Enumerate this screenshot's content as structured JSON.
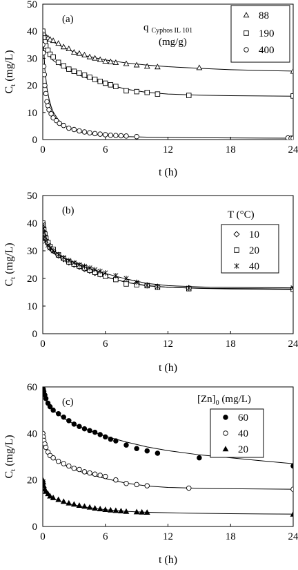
{
  "figure": {
    "panels_count": 3
  },
  "chart_data": [
    {
      "type": "scatter",
      "panel_label": "(a)",
      "xlabel": "t (h)",
      "ylabel": "C_t (mg/L)",
      "ylabel_main": "C",
      "ylabel_sub": "t",
      "ylabel_rest": " (mg/L)",
      "xlim": [
        0,
        24
      ],
      "ylim": [
        0,
        50
      ],
      "xticks": [
        0,
        6,
        12,
        18,
        24
      ],
      "yticks": [
        0,
        10,
        20,
        30,
        40,
        50
      ],
      "grid": false,
      "legend_title_lines": [
        "q",
        "Cyphos IL 101",
        "(mg/g)"
      ],
      "legend_placement": "top-right",
      "series": [
        {
          "name": "88",
          "marker": "triangle-open",
          "x": [
            0,
            0.05,
            0.1,
            0.2,
            0.3,
            0.5,
            0.7,
            1.0,
            1.5,
            2.0,
            2.5,
            3.0,
            3.5,
            4.0,
            4.5,
            5.0,
            5.5,
            6.0,
            6.5,
            7.0,
            8.0,
            9.0,
            10.0,
            11.0,
            15.0,
            24.0
          ],
          "y": [
            40,
            39.5,
            39,
            38.5,
            38,
            37.5,
            37,
            36.5,
            35.5,
            34.2,
            33.5,
            32.2,
            31.8,
            31.2,
            30.5,
            30,
            29.5,
            28.9,
            28.7,
            28.4,
            28,
            27.5,
            27,
            26.8,
            26.5,
            25.2
          ],
          "fit": [
            [
              0,
              40.5
            ],
            [
              0.5,
              37.4
            ],
            [
              1,
              36
            ],
            [
              2,
              34
            ],
            [
              3,
              32.3
            ],
            [
              4,
              31
            ],
            [
              6,
              29.4
            ],
            [
              8,
              28.3
            ],
            [
              10,
              27.5
            ],
            [
              12,
              26.9
            ],
            [
              15,
              26.3
            ],
            [
              18,
              25.8
            ],
            [
              21,
              25.5
            ],
            [
              24,
              25.3
            ]
          ]
        },
        {
          "name": "190",
          "marker": "square-open",
          "x": [
            0,
            0.05,
            0.1,
            0.2,
            0.3,
            0.5,
            0.7,
            1.0,
            1.5,
            2.0,
            2.5,
            3.0,
            3.5,
            4.0,
            4.5,
            5.0,
            5.5,
            6.0,
            6.5,
            7.0,
            8.0,
            9.0,
            10.0,
            11.0,
            14.0,
            24.0
          ],
          "y": [
            40,
            38.5,
            37.5,
            36,
            34.5,
            33,
            31.5,
            30.5,
            28.5,
            27.2,
            26,
            25.2,
            24.5,
            23.8,
            23,
            22.2,
            21.5,
            20.8,
            20.2,
            19.6,
            18,
            17.7,
            17.4,
            16.8,
            16.3,
            16.1
          ],
          "fit": [
            [
              0,
              40.5
            ],
            [
              0.5,
              31.5
            ],
            [
              1,
              29.2
            ],
            [
              2,
              26.6
            ],
            [
              3,
              24.6
            ],
            [
              4,
              23
            ],
            [
              6,
              20.6
            ],
            [
              8,
              18.6
            ],
            [
              10,
              17.4
            ],
            [
              12,
              16.8
            ],
            [
              15,
              16.4
            ],
            [
              18,
              16.2
            ],
            [
              24,
              16
            ]
          ]
        },
        {
          "name": "400",
          "marker": "circle-open",
          "x": [
            0,
            0.05,
            0.1,
            0.15,
            0.2,
            0.3,
            0.4,
            0.5,
            0.6,
            0.8,
            1.0,
            1.3,
            1.6,
            2.0,
            2.5,
            3.0,
            3.5,
            4.0,
            4.5,
            5.0,
            5.5,
            6.0,
            6.5,
            7.0,
            7.5,
            8.0,
            9.0,
            23.5,
            23.8,
            24.0
          ],
          "y": [
            35,
            32,
            27,
            24,
            20,
            17,
            14,
            12.5,
            11,
            9.5,
            8,
            7,
            6,
            5.2,
            4.2,
            3.7,
            3.2,
            2.8,
            2.5,
            2.2,
            2,
            1.8,
            1.6,
            1.5,
            1.4,
            1.3,
            1.1,
            0.6,
            0.5,
            0.5
          ],
          "fit": [
            [
              0,
              40
            ],
            [
              0.2,
              26
            ],
            [
              0.4,
              19
            ],
            [
              0.6,
              15
            ],
            [
              0.8,
              12.2
            ],
            [
              1,
              10.2
            ],
            [
              1.5,
              7.2
            ],
            [
              2,
              5.4
            ],
            [
              3,
              3.4
            ],
            [
              4,
              2.4
            ],
            [
              6,
              1.5
            ],
            [
              8,
              1.1
            ],
            [
              10,
              0.9
            ],
            [
              14,
              0.7
            ],
            [
              18,
              0.6
            ],
            [
              24,
              0.5
            ]
          ]
        }
      ]
    },
    {
      "type": "scatter",
      "panel_label": "(b)",
      "xlabel": "t (h)",
      "ylabel": "C_t (mg/L)",
      "ylabel_main": "C",
      "ylabel_sub": "t",
      "ylabel_rest": " (mg/L)",
      "xlim": [
        0,
        24
      ],
      "ylim": [
        0,
        50
      ],
      "xticks": [
        0,
        6,
        12,
        18,
        24
      ],
      "yticks": [
        0,
        10,
        20,
        30,
        40,
        50
      ],
      "grid": false,
      "legend_title_lines": [
        "T (°C)"
      ],
      "legend_placement": "right",
      "series": [
        {
          "name": "10",
          "marker": "diamond-open",
          "x": [
            0,
            0.05,
            0.1,
            0.2,
            0.3,
            0.5,
            0.7,
            1.0,
            1.5,
            2.0,
            2.5,
            3.0,
            3.5,
            4.0,
            4.5,
            5.0,
            5.5,
            6.0,
            7.0,
            8.0,
            9.0,
            10.0,
            11.0,
            14.0,
            24.0
          ],
          "y": [
            40,
            38.5,
            37,
            35.5,
            34,
            32.5,
            31,
            30,
            28.3,
            27,
            25.8,
            25,
            24.2,
            23.4,
            22.8,
            22,
            21.5,
            21,
            20,
            19,
            18.2,
            17.5,
            17,
            16.5,
            16.2
          ],
          "fit": [
            [
              0,
              40
            ],
            [
              0.5,
              32
            ],
            [
              1,
              29.6
            ],
            [
              2,
              26.6
            ],
            [
              3,
              24.6
            ],
            [
              4,
              23.1
            ],
            [
              6,
              20.6
            ],
            [
              8,
              18.6
            ],
            [
              10,
              17.3
            ],
            [
              12,
              16.8
            ],
            [
              16,
              16.4
            ],
            [
              24,
              16.2
            ]
          ]
        },
        {
          "name": "20",
          "marker": "square-open",
          "x": [
            0,
            0.05,
            0.1,
            0.2,
            0.3,
            0.5,
            0.7,
            1.0,
            1.5,
            2.0,
            2.5,
            3.0,
            3.5,
            4.0,
            4.5,
            5.0,
            5.5,
            6.0,
            7.0,
            8.0,
            9.0,
            10.0,
            11.0,
            14.0,
            24.0
          ],
          "y": [
            40,
            38.5,
            37.5,
            36,
            34.5,
            33,
            31.5,
            30.5,
            28.5,
            27.2,
            26,
            25.2,
            24.5,
            23.8,
            23,
            22.2,
            21.5,
            20.8,
            19.6,
            18,
            17.7,
            17.4,
            16.8,
            16.3,
            16.1
          ],
          "fit": [
            [
              0,
              40.5
            ],
            [
              0.5,
              31.5
            ],
            [
              1,
              29.2
            ],
            [
              2,
              26.6
            ],
            [
              3,
              24.6
            ],
            [
              4,
              23
            ],
            [
              6,
              20.6
            ],
            [
              8,
              18.6
            ],
            [
              10,
              17.4
            ],
            [
              12,
              16.8
            ],
            [
              15,
              16.4
            ],
            [
              18,
              16.2
            ],
            [
              24,
              16
            ]
          ]
        },
        {
          "name": "40",
          "marker": "star",
          "x": [
            0,
            0.05,
            0.1,
            0.2,
            0.3,
            0.5,
            0.7,
            1.0,
            1.5,
            2.0,
            2.5,
            3.0,
            3.5,
            4.0,
            4.5,
            5.0,
            5.5,
            6.0,
            7.0,
            8.0,
            9.0,
            10.0,
            11.0,
            14.0,
            24.0
          ],
          "y": [
            39.5,
            38,
            36.5,
            35,
            33.5,
            32,
            31,
            30,
            28.6,
            27.5,
            26.5,
            25.7,
            25,
            24.4,
            23.8,
            23.2,
            22.6,
            22,
            21,
            20,
            18.6,
            17.5,
            17,
            16.5,
            16.6
          ],
          "fit": [
            [
              0,
              39.5
            ],
            [
              0.5,
              32.5
            ],
            [
              1,
              30.2
            ],
            [
              2,
              27.5
            ],
            [
              3,
              25.7
            ],
            [
              4,
              24.2
            ],
            [
              6,
              21.8
            ],
            [
              8,
              19.8
            ],
            [
              10,
              18.2
            ],
            [
              12,
              17.4
            ],
            [
              16,
              16.8
            ],
            [
              24,
              16.6
            ]
          ]
        }
      ]
    },
    {
      "type": "scatter",
      "panel_label": "(c)",
      "xlabel": "t (h)",
      "ylabel": "C_t (mg/L)",
      "ylabel_main": "C",
      "ylabel_sub": "t",
      "ylabel_rest": " (mg/L)",
      "xlim": [
        0,
        24
      ],
      "ylim": [
        0,
        60
      ],
      "xticks": [
        0,
        6,
        12,
        18,
        24
      ],
      "yticks": [
        0,
        20,
        40,
        60
      ],
      "grid": false,
      "legend_title_lines": [
        "[Zn]",
        "0",
        " (mg/L)"
      ],
      "legend_placement": "top-right",
      "series": [
        {
          "name": "60",
          "marker": "circle-filled",
          "x": [
            0,
            0.05,
            0.1,
            0.2,
            0.3,
            0.5,
            0.7,
            1.0,
            1.5,
            2.0,
            2.5,
            3.0,
            3.5,
            4.0,
            4.5,
            5.0,
            5.5,
            6.0,
            6.5,
            7.0,
            8.0,
            9.0,
            10.0,
            11.0,
            15.0,
            24.0
          ],
          "y": [
            60,
            59,
            58,
            56.5,
            55,
            53,
            51.5,
            50,
            48.5,
            47,
            45.5,
            44,
            43,
            42,
            41.2,
            40.5,
            39.5,
            38.5,
            37.5,
            36.8,
            35,
            33.5,
            32.5,
            31.5,
            29.5,
            26
          ],
          "fit": [
            [
              0,
              60
            ],
            [
              0.5,
              53
            ],
            [
              1,
              50
            ],
            [
              2,
              46.5
            ],
            [
              3,
              44
            ],
            [
              4,
              42
            ],
            [
              6,
              38.8
            ],
            [
              8,
              36.3
            ],
            [
              10,
              34.2
            ],
            [
              12,
              32.6
            ],
            [
              15,
              30.8
            ],
            [
              18,
              29.5
            ],
            [
              21,
              28.2
            ],
            [
              24,
              27
            ]
          ]
        },
        {
          "name": "40",
          "marker": "circle-open",
          "x": [
            0,
            0.05,
            0.1,
            0.2,
            0.3,
            0.5,
            0.7,
            1.0,
            1.5,
            2.0,
            2.5,
            3.0,
            3.5,
            4.0,
            4.5,
            5.0,
            5.5,
            6.0,
            7.0,
            8.0,
            9.0,
            10.0,
            14.0,
            24.0
          ],
          "y": [
            40,
            38.5,
            37,
            35.5,
            34,
            32,
            30.5,
            29.5,
            28,
            27,
            26,
            25,
            24.5,
            23.5,
            23,
            22.5,
            22,
            21.5,
            20,
            18.5,
            18,
            17.5,
            16.5,
            16
          ],
          "fit": [
            [
              0,
              40
            ],
            [
              0.5,
              31.5
            ],
            [
              1,
              29.2
            ],
            [
              2,
              26.6
            ],
            [
              3,
              24.6
            ],
            [
              4,
              23
            ],
            [
              6,
              20.6
            ],
            [
              8,
              18.6
            ],
            [
              10,
              17.4
            ],
            [
              12,
              16.8
            ],
            [
              16,
              16.3
            ],
            [
              24,
              16
            ]
          ]
        },
        {
          "name": "20",
          "marker": "triangle-filled",
          "x": [
            0,
            0.05,
            0.1,
            0.2,
            0.3,
            0.5,
            0.7,
            1.0,
            1.5,
            2.0,
            2.5,
            3.0,
            3.5,
            4.0,
            4.5,
            5.0,
            5.5,
            6.0,
            6.5,
            7.0,
            7.5,
            8.0,
            9.0,
            9.5,
            10.0,
            24.0
          ],
          "y": [
            20,
            19,
            17.5,
            16,
            15,
            14,
            13,
            12.3,
            11.5,
            10.7,
            10,
            9.5,
            9,
            8.6,
            8.2,
            7.8,
            7.5,
            7.2,
            7,
            6.8,
            6.6,
            6.4,
            6.2,
            6.1,
            6,
            5.2
          ],
          "fit": [
            [
              0,
              20
            ],
            [
              0.3,
              14.8
            ],
            [
              0.6,
              13.2
            ],
            [
              1,
              12
            ],
            [
              2,
              10.3
            ],
            [
              3,
              9.2
            ],
            [
              4,
              8.4
            ],
            [
              6,
              7.2
            ],
            [
              8,
              6.5
            ],
            [
              10,
              6.1
            ],
            [
              14,
              5.7
            ],
            [
              18,
              5.5
            ],
            [
              24,
              5.3
            ]
          ]
        }
      ]
    }
  ]
}
